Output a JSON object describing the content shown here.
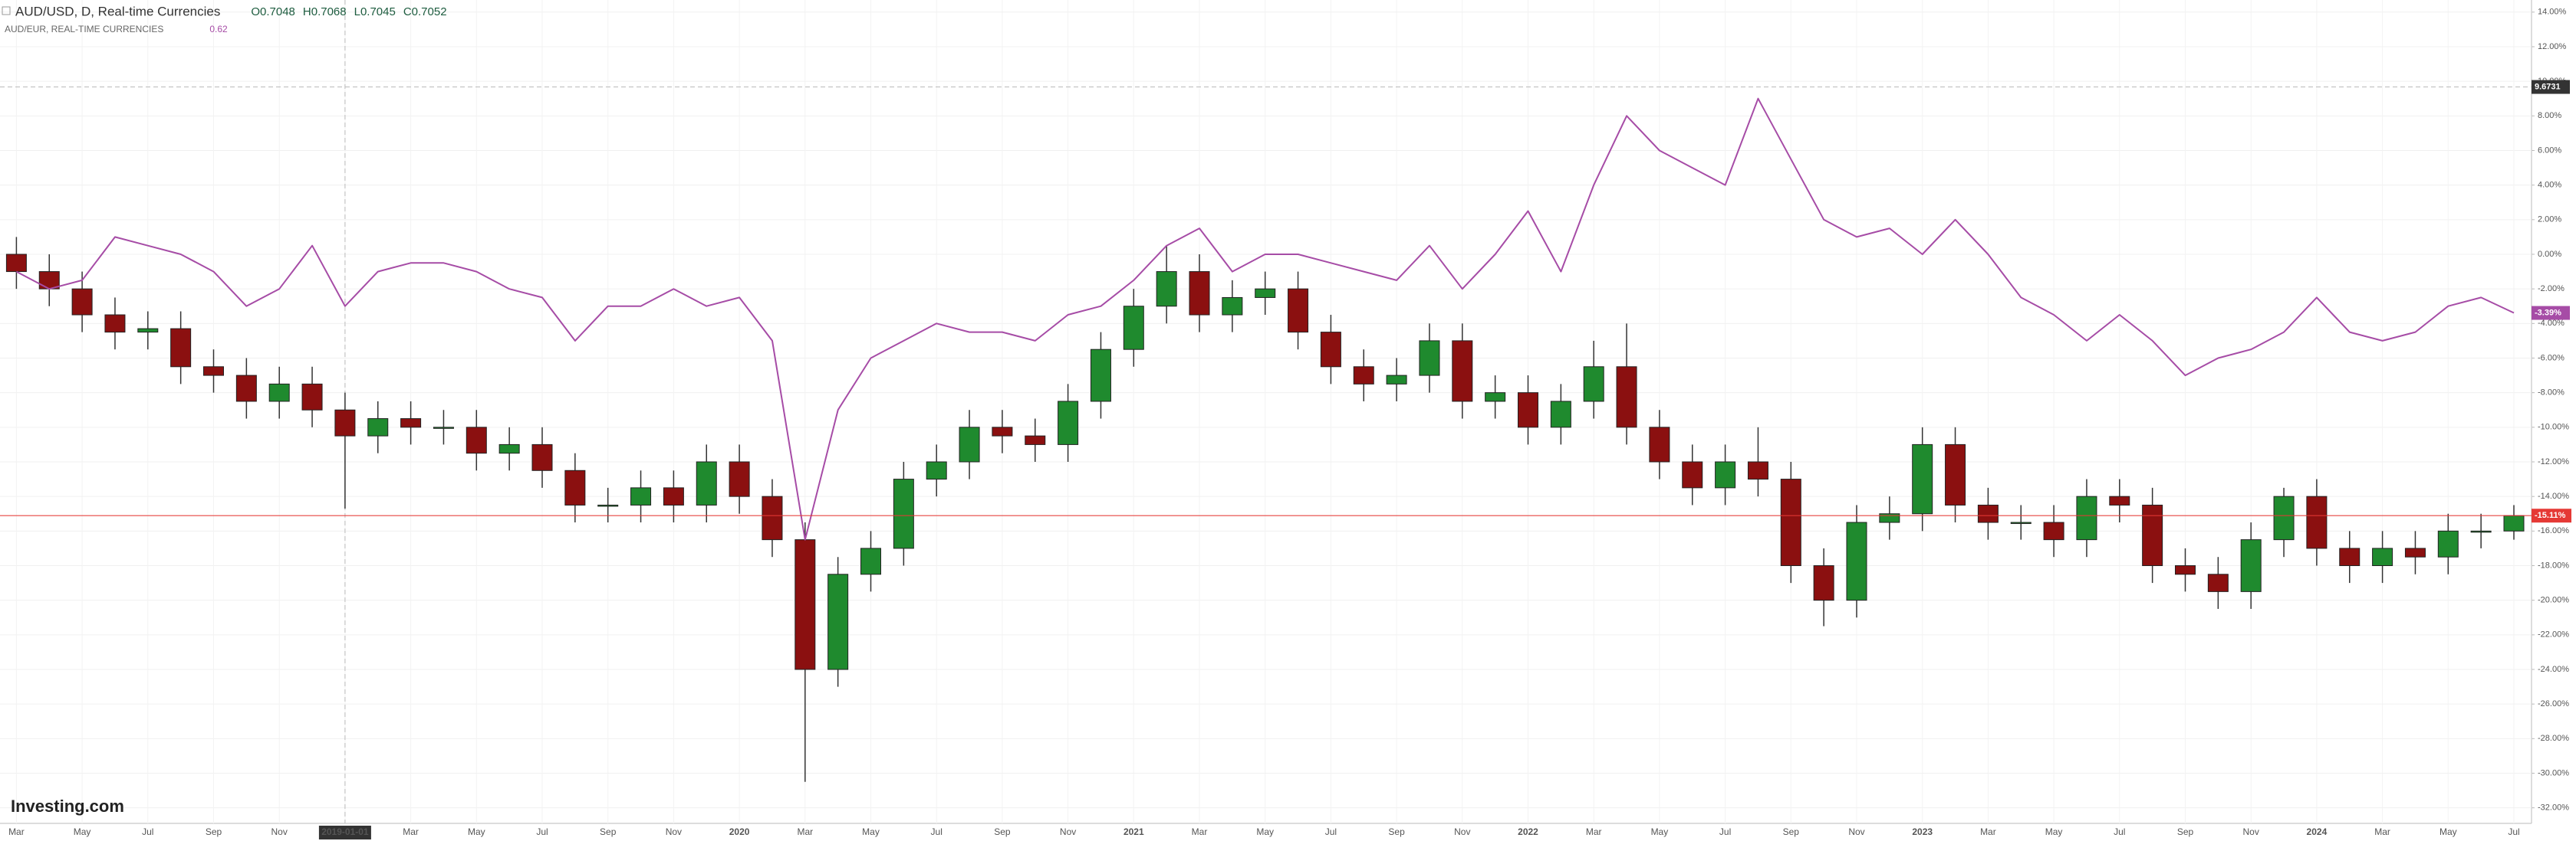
{
  "chart_data": {
    "type": "candlestick",
    "ohlc_labels": [
      "O0.7048",
      "H0.7068",
      "L0.7045",
      "C0.7052"
    ],
    "compare_value": 0.62,
    "logo": "Investing.com",
    "categories": [
      "Mar",
      null,
      "May",
      null,
      "Jul",
      null,
      "Sep",
      null,
      "Nov",
      null,
      "2019-01-01",
      null,
      "Mar",
      null,
      "May",
      null,
      "Jul",
      null,
      "Sep",
      null,
      "Nov",
      null,
      "2020",
      null,
      "Mar",
      null,
      "May",
      null,
      "Jul",
      null,
      "Sep",
      null,
      "Nov",
      null,
      "2021",
      null,
      "Mar",
      null,
      "May",
      null,
      "Jul",
      null,
      "Sep",
      null,
      "Nov",
      null,
      "2022",
      null,
      "Mar",
      null,
      "May",
      null,
      "Jul",
      null,
      "Sep",
      null,
      "Nov",
      null,
      "2023",
      null,
      "Mar",
      null,
      "May",
      null,
      "Jul",
      null,
      "Sep",
      null,
      "Nov",
      null,
      "2024",
      null,
      "Mar",
      null,
      "May",
      null,
      "Jul"
    ],
    "series": [
      {
        "name": "AUD/USD, D, Real-time Currencies",
        "type": "candlestick",
        "up_color": "#1f8a2e",
        "down_color": "#8b1010",
        "open": [
          0,
          -1,
          -2,
          -3.5,
          -4.5,
          -4.3,
          -6.5,
          -7,
          -8.5,
          -7.5,
          -9,
          -10.5,
          -9.5,
          -10,
          -10,
          -11.5,
          -11,
          -12.5,
          -14.5,
          -14.5,
          -13.5,
          -14.5,
          -12,
          -14,
          -16.5,
          -24,
          -18.5,
          -17,
          -13,
          -12,
          -10,
          -10.5,
          -11,
          -8.5,
          -5.5,
          -3,
          -1,
          -3.5,
          -2.5,
          -2,
          -4.5,
          -6.5,
          -7.5,
          -7,
          -5,
          -8.5,
          -8,
          -10,
          -8.5,
          -6.5,
          -10,
          -12,
          -13.5,
          -12,
          -13,
          -18,
          -20,
          -15.5,
          -15,
          -11,
          -14.5,
          -15.5,
          -15.5,
          -16.5,
          -14,
          -14.5,
          -18,
          -18.5,
          -19.5,
          -16.5,
          -14,
          -17,
          -18,
          -17,
          -17.5,
          -16,
          -16
        ],
        "high": [
          1,
          0,
          -1,
          -2.5,
          -3.3,
          -3.3,
          -5.5,
          -6,
          -6.5,
          -6.5,
          -8,
          -8.5,
          -8.5,
          -9,
          -9,
          -10,
          -10,
          -11.5,
          -13.5,
          -12.5,
          -12.5,
          -11,
          -11,
          -13,
          -15.5,
          -17.5,
          -16,
          -12,
          -11,
          -9,
          -9,
          -9.5,
          -7.5,
          -4.5,
          -2,
          0.5,
          0,
          -1.5,
          -1,
          -1,
          -3.5,
          -5.5,
          -6,
          -4,
          -4,
          -7,
          -7,
          -7.5,
          -5,
          -4,
          -9,
          -11,
          -11,
          -10,
          -12,
          -17,
          -14.5,
          -14,
          -10,
          -10,
          -13.5,
          -14.5,
          -14.5,
          -13,
          -13,
          -13.5,
          -17,
          -17.5,
          -15.5,
          -13.5,
          -13,
          -16,
          -16,
          -16,
          -15,
          -15,
          -14.5
        ],
        "low": [
          -2,
          -3,
          -4.5,
          -5.5,
          -5.5,
          -7.5,
          -8,
          -9.5,
          -9.5,
          -10,
          -14.7,
          -11.5,
          -11,
          -11,
          -12.5,
          -12.5,
          -13.5,
          -15.5,
          -15.5,
          -15.5,
          -15.5,
          -15.5,
          -15,
          -17.5,
          -30.5,
          -25,
          -19.5,
          -18,
          -14,
          -13,
          -11.5,
          -12,
          -12,
          -9.5,
          -6.5,
          -4,
          -4.5,
          -4.5,
          -3.5,
          -5.5,
          -7.5,
          -8.5,
          -8.5,
          -8,
          -9.5,
          -9.5,
          -11,
          -11,
          -9.5,
          -11,
          -13,
          -14.5,
          -14.5,
          -14,
          -19,
          -21.5,
          -21,
          -16.5,
          -16,
          -15.5,
          -16.5,
          -16.5,
          -17.5,
          -17.5,
          -15.5,
          -19,
          -19.5,
          -20.5,
          -20.5,
          -17.5,
          -18,
          -19,
          -19,
          -18.5,
          -18.5,
          -17,
          -16.5
        ],
        "close": [
          -1,
          -2,
          -3.5,
          -4.5,
          -4.3,
          -6.5,
          -7,
          -8.5,
          -7.5,
          -9,
          -10.5,
          -9.5,
          -10,
          -10,
          -11.5,
          -11,
          -12.5,
          -14.5,
          -14.5,
          -13.5,
          -14.5,
          -12,
          -14,
          -16.5,
          -24,
          -18.5,
          -17,
          -13,
          -12,
          -10,
          -10.5,
          -11,
          -8.5,
          -5.5,
          -3,
          -1,
          -3.5,
          -2.5,
          -2,
          -4.5,
          -6.5,
          -7.5,
          -7,
          -5,
          -8.5,
          -8,
          -10,
          -8.5,
          -6.5,
          -10,
          -12,
          -13.5,
          -12,
          -13,
          -18,
          -20,
          -15.5,
          -15,
          -11,
          -14.5,
          -15.5,
          -15.5,
          -16.5,
          -14,
          -14.5,
          -18,
          -18.5,
          -19.5,
          -16.5,
          -14,
          -17,
          -18,
          -17,
          -17.5,
          -16,
          -16,
          -15.11
        ]
      },
      {
        "name": "AUD/EUR, REAL-TIME CURRENCIES",
        "type": "line",
        "color": "#a64ca6",
        "values": [
          -1,
          -2,
          -1.5,
          1,
          0.5,
          0,
          -1,
          -3,
          -2,
          0.5,
          -3,
          -1,
          -0.5,
          -0.5,
          -1,
          -2,
          -2.5,
          -5,
          -3,
          -3,
          -2,
          -3,
          -2.5,
          -5,
          -16.5,
          -9,
          -6,
          -5,
          -4,
          -4.5,
          -4.5,
          -5,
          -3.5,
          -3,
          -1.5,
          0.5,
          1.5,
          -1,
          0,
          0,
          -0.5,
          -1,
          -1.5,
          0.5,
          -2,
          0,
          2.5,
          -1,
          4,
          8,
          6,
          5,
          4,
          9,
          5.5,
          2,
          1,
          1.5,
          0,
          2,
          0,
          -2.5,
          -3.5,
          -5,
          -3.5,
          -5,
          -7,
          -6,
          -5.5,
          -4.5,
          -2.5,
          -4.5,
          -5,
          -4.5,
          -3,
          -2.5,
          -3.39
        ]
      }
    ],
    "ylim": [
      -32.9,
      14.7
    ],
    "yticks": [
      {
        "value": 14,
        "label": "14.00%"
      },
      {
        "value": 12,
        "label": "12.00%"
      },
      {
        "value": 10,
        "label": "10.00%"
      },
      {
        "value": 8,
        "label": "8.00%"
      },
      {
        "value": 6,
        "label": "6.00%"
      },
      {
        "value": 4,
        "label": "4.00%"
      },
      {
        "value": 2,
        "label": "2.00%"
      },
      {
        "value": 0,
        "label": "0.00%"
      },
      {
        "value": -2,
        "label": "-2.00%"
      },
      {
        "value": -4,
        "label": "-4.00%"
      },
      {
        "value": -6,
        "label": "-6.00%"
      },
      {
        "value": -8,
        "label": "-8.00%"
      },
      {
        "value": -10,
        "label": "-10.00%"
      },
      {
        "value": -12,
        "label": "-12.00%"
      },
      {
        "value": -14,
        "label": "-14.00%"
      },
      {
        "value": -16,
        "label": "-16.00%"
      },
      {
        "value": -18,
        "label": "-18.00%"
      },
      {
        "value": -20,
        "label": "-20.00%"
      },
      {
        "value": -22,
        "label": "-22.00%"
      },
      {
        "value": -24,
        "label": "-24.00%"
      },
      {
        "value": -26,
        "label": "-26.00%"
      },
      {
        "value": -28,
        "label": "-28.00%"
      },
      {
        "value": -30,
        "label": "-30.00%"
      },
      {
        "value": -32,
        "label": "-32.00%"
      }
    ],
    "grid": true,
    "price_line": {
      "value": -15.11,
      "label": "-15.11%",
      "color": "#e53935"
    },
    "compare_last": {
      "value": -3.39,
      "label": "-3.39%"
    },
    "crosshair": {
      "value": 9.6731
    }
  }
}
